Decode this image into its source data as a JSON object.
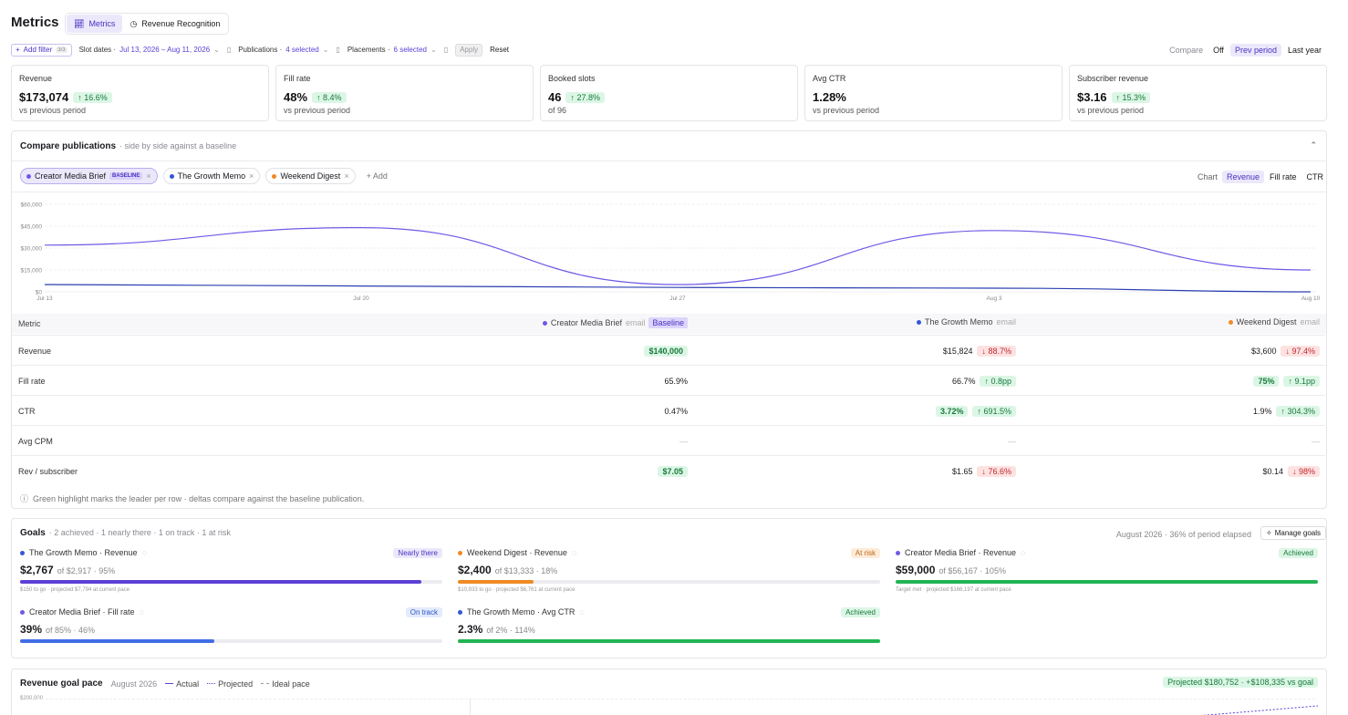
{
  "header": {
    "title": "Metrics",
    "tabs": [
      {
        "label": "Metrics"
      },
      {
        "label": "Revenue Recognition"
      }
    ]
  },
  "filters": {
    "add_filter": "Add filter",
    "add_filter_count": "3/3",
    "slot_dates_label": "Slot dates ·",
    "slot_dates_value": "Jul 13, 2026 – Aug 11, 2026",
    "publications_label": "Publications ·",
    "publications_value": "4 selected",
    "placements_label": "Placements ·",
    "placements_value": "6 selected",
    "apply": "Apply",
    "reset": "Reset"
  },
  "compare": {
    "label": "Compare",
    "options": [
      "Off",
      "Prev period",
      "Last year"
    ],
    "selected": "Prev period"
  },
  "kpis": [
    {
      "label": "Revenue",
      "value": "$173,074",
      "delta": "↑ 16.6%",
      "sub": "vs previous period"
    },
    {
      "label": "Fill rate",
      "value": "48%",
      "delta": "↑ 8.4%",
      "sub": "vs previous period"
    },
    {
      "label": "Booked slots",
      "value": "46",
      "delta": "↑ 27.8%",
      "sub": "of 96"
    },
    {
      "label": "Avg CTR",
      "value": "1.28%",
      "delta": "",
      "sub": "vs previous period"
    },
    {
      "label": "Subscriber revenue",
      "value": "$3.16",
      "delta": "↑ 15.3%",
      "sub": "vs previous period"
    }
  ],
  "compare_pubs": {
    "title": "Compare publications",
    "subtitle": "· side by side against a baseline",
    "chips": [
      {
        "name": "Creator Media Brief",
        "badge": "BASELINE",
        "color": "#6d5ae6"
      },
      {
        "name": "The Growth Memo",
        "badge": "",
        "color": "#3457d5"
      },
      {
        "name": "Weekend Digest",
        "badge": "",
        "color": "#f08a24"
      }
    ],
    "add": "+ Add",
    "chart_label": "Chart",
    "chart_options": [
      "Revenue",
      "Fill rate",
      "CTR"
    ],
    "chart_selected": "Revenue",
    "footnote": "Green highlight marks the leader per row · deltas compare against the baseline publication."
  },
  "chart_data": {
    "type": "line",
    "x": [
      "Jul 13",
      "Jul 20",
      "Jul 27",
      "Aug 3",
      "Aug 10"
    ],
    "y_ticks": [
      "$60,000",
      "$45,000",
      "$30,000",
      "$15,000",
      "$0"
    ],
    "ylim": [
      0,
      60000
    ],
    "series": [
      {
        "name": "Creator Media Brief",
        "color": "#6d5ae6",
        "values": [
          32000,
          44000,
          5000,
          42000,
          15000
        ]
      },
      {
        "name": "The Growth Memo",
        "color": "#2a3fb0",
        "values": [
          5000,
          4000,
          3000,
          2500,
          0
        ]
      }
    ]
  },
  "table": {
    "metric_header": "Metric",
    "columns": [
      {
        "name": "Creator Media Brief",
        "type": "email",
        "badge": "Baseline",
        "color": "#6d5ae6"
      },
      {
        "name": "The Growth Memo",
        "type": "email",
        "badge": "",
        "color": "#3457d5"
      },
      {
        "name": "Weekend Digest",
        "type": "email",
        "badge": "",
        "color": "#f08a24"
      }
    ],
    "rows": [
      {
        "metric": "Revenue",
        "cells": [
          {
            "value": "$140,000",
            "leader": true,
            "delta": "",
            "dir": ""
          },
          {
            "value": "$15,824",
            "leader": false,
            "delta": "↓ 88.7%",
            "dir": "down"
          },
          {
            "value": "$3,600",
            "leader": false,
            "delta": "↓ 97.4%",
            "dir": "down"
          }
        ]
      },
      {
        "metric": "Fill rate",
        "cells": [
          {
            "value": "65.9%",
            "leader": false,
            "delta": "",
            "dir": ""
          },
          {
            "value": "66.7%",
            "leader": false,
            "delta": "↑ 0.8pp",
            "dir": "up"
          },
          {
            "value": "75%",
            "leader": true,
            "delta": "↑ 9.1pp",
            "dir": "up"
          }
        ]
      },
      {
        "metric": "CTR",
        "cells": [
          {
            "value": "0.47%",
            "leader": false,
            "delta": "",
            "dir": ""
          },
          {
            "value": "3.72%",
            "leader": true,
            "delta": "↑ 691.5%",
            "dir": "up"
          },
          {
            "value": "1.9%",
            "leader": false,
            "delta": "↑ 304.3%",
            "dir": "up"
          }
        ]
      },
      {
        "metric": "Avg CPM",
        "cells": [
          {
            "value": "—",
            "leader": false,
            "delta": "",
            "dir": ""
          },
          {
            "value": "—",
            "leader": false,
            "delta": "",
            "dir": ""
          },
          {
            "value": "—",
            "leader": false,
            "delta": "",
            "dir": ""
          }
        ]
      },
      {
        "metric": "Rev / subscriber",
        "cells": [
          {
            "value": "$7.05",
            "leader": true,
            "delta": "",
            "dir": ""
          },
          {
            "value": "$1.65",
            "leader": false,
            "delta": "↓ 76.6%",
            "dir": "down"
          },
          {
            "value": "$0.14",
            "leader": false,
            "delta": "↓ 98%",
            "dir": "down"
          }
        ]
      }
    ]
  },
  "goals": {
    "title": "Goals",
    "summary": "· 2 achieved · 1 nearly there · 1 on track · 1 at risk",
    "period": "August 2026 · 36% of period elapsed",
    "manage": "Manage goals",
    "items": [
      {
        "title": "The Growth Memo · Revenue",
        "status": "Nearly there",
        "value": "$2,767",
        "target": "of $2,917 · 95%",
        "note": "$150 to go · projected $7,794 at current pace",
        "fill": 0.95,
        "color": "#5b3fd6",
        "dot": "#3457d5"
      },
      {
        "title": "Weekend Digest · Revenue",
        "status": "At risk",
        "value": "$2,400",
        "target": "of $13,333 · 18%",
        "note": "$10,933 to go · projected $6,761 at current pace",
        "fill": 0.18,
        "color": "#f08a24",
        "dot": "#f08a24"
      },
      {
        "title": "Creator Media Brief · Revenue",
        "status": "Achieved",
        "value": "$59,000",
        "target": "of $56,167 · 105%",
        "note": "Target met · projected $166,197 at current pace",
        "fill": 1.0,
        "color": "#22b455",
        "dot": "#6d5ae6"
      },
      {
        "title": "Creator Media Brief · Fill rate",
        "status": "On track",
        "value": "39%",
        "target": "of 85% · 46%",
        "note": "",
        "fill": 0.46,
        "color": "#3f6ee6",
        "dot": "#6d5ae6"
      },
      {
        "title": "The Growth Memo · Avg CTR",
        "status": "Achieved",
        "value": "2.3%",
        "target": "of 2% · 114%",
        "note": "",
        "fill": 1.0,
        "color": "#22b455",
        "dot": "#3457d5"
      }
    ]
  },
  "pace": {
    "title": "Revenue goal pace",
    "month": "August 2026",
    "legend": [
      "Actual",
      "Projected",
      "Ideal pace"
    ],
    "badge": "Projected $180,752 · +$108,335 vs goal",
    "y_top": "$200,000"
  }
}
